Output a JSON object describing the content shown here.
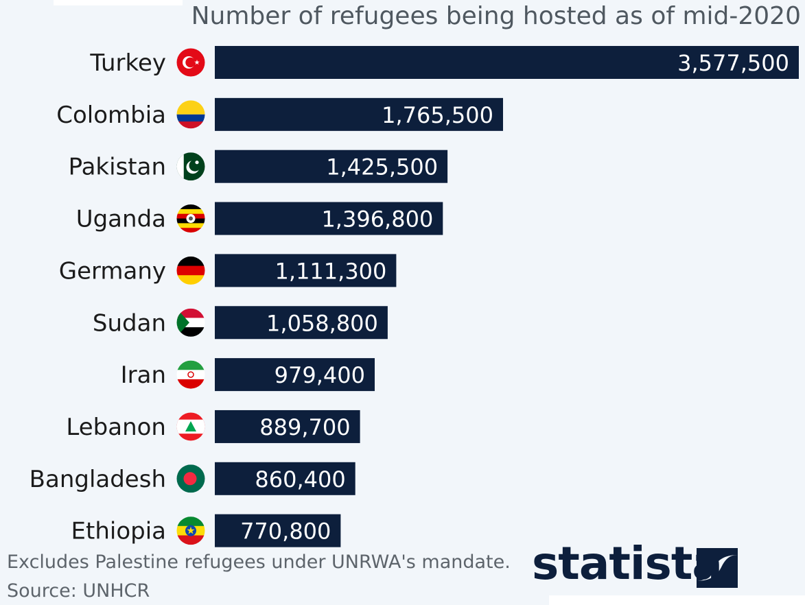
{
  "title": "Number of refugees being hosted as of mid-2020",
  "chart_data": {
    "type": "bar",
    "orientation": "horizontal",
    "title": "Number of refugees being hosted as of mid-2020",
    "categories": [
      "Turkey",
      "Colombia",
      "Pakistan",
      "Uganda",
      "Germany",
      "Sudan",
      "Iran",
      "Lebanon",
      "Bangladesh",
      "Ethiopia"
    ],
    "values": [
      3577500,
      1765500,
      1425500,
      1396800,
      1111300,
      1058800,
      979400,
      889700,
      860400,
      770800
    ],
    "data_labels": [
      "3,577,500",
      "1,765,500",
      "1,425,500",
      "1,396,800",
      "1,111,300",
      "1,058,800",
      "979,400",
      "889,700",
      "860,400",
      "770,800"
    ],
    "flags": [
      "turkey-flag-icon",
      "colombia-flag-icon",
      "pakistan-flag-icon",
      "uganda-flag-icon",
      "germany-flag-icon",
      "sudan-flag-icon",
      "iran-flag-icon",
      "lebanon-flag-icon",
      "bangladesh-flag-icon",
      "ethiopia-flag-icon"
    ],
    "xlim": [
      0,
      3577500
    ],
    "grid": false,
    "legend": "none",
    "bar_color": "#0d1f3c"
  },
  "footer": {
    "note": "Excludes Palestine refugees under UNRWA's mandate.",
    "source": "Source: UNHCR"
  },
  "logo": {
    "text": "statista",
    "icon": "statista-logo-icon"
  }
}
